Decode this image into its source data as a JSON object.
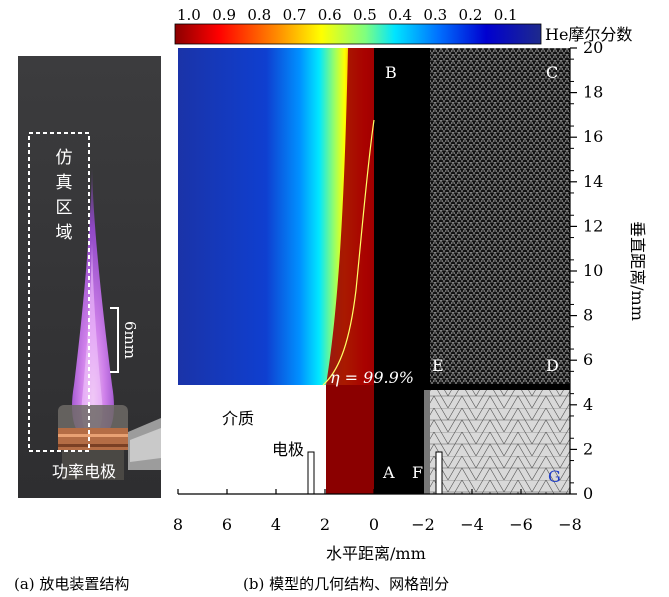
{
  "colorbar": {
    "ticks": [
      "1.0",
      "0.9",
      "0.8",
      "0.7",
      "0.6",
      "0.5",
      "0.4",
      "0.3",
      "0.2",
      "0.1"
    ],
    "label": "He摩尔分数",
    "stops": [
      "#8b0000",
      "#ff0000",
      "#ff8000",
      "#ffff00",
      "#80ff80",
      "#00e0ff",
      "#0060ff",
      "#0000c0",
      "#1e2a8c"
    ]
  },
  "photo": {
    "region_label": [
      "仿",
      "真",
      "区",
      "域"
    ],
    "scale_label": "6mm",
    "electrode_label": "功率电极"
  },
  "simulation": {
    "corner_labels": [
      "A",
      "B",
      "C",
      "D",
      "E",
      "F"
    ],
    "subdomain_label": "G",
    "dielectric_label": "介质",
    "electrode_label": "电极",
    "contour_label": "η = 99.9%"
  },
  "axes": {
    "x": {
      "label": "水平距离/mm",
      "ticks": [
        "8",
        "6",
        "4",
        "2",
        "0",
        "−2",
        "−4",
        "−6",
        "−8"
      ],
      "range": [
        8,
        -8
      ]
    },
    "y": {
      "label": "垂直距离/mm",
      "ticks": [
        "0",
        "2",
        "4",
        "6",
        "8",
        "10",
        "12",
        "14",
        "16",
        "18",
        "20"
      ],
      "range": [
        0,
        20
      ]
    }
  },
  "captions": {
    "a": "(a)   放电装置结构",
    "b": "(b)   模型的几何结构、网格剖分"
  }
}
